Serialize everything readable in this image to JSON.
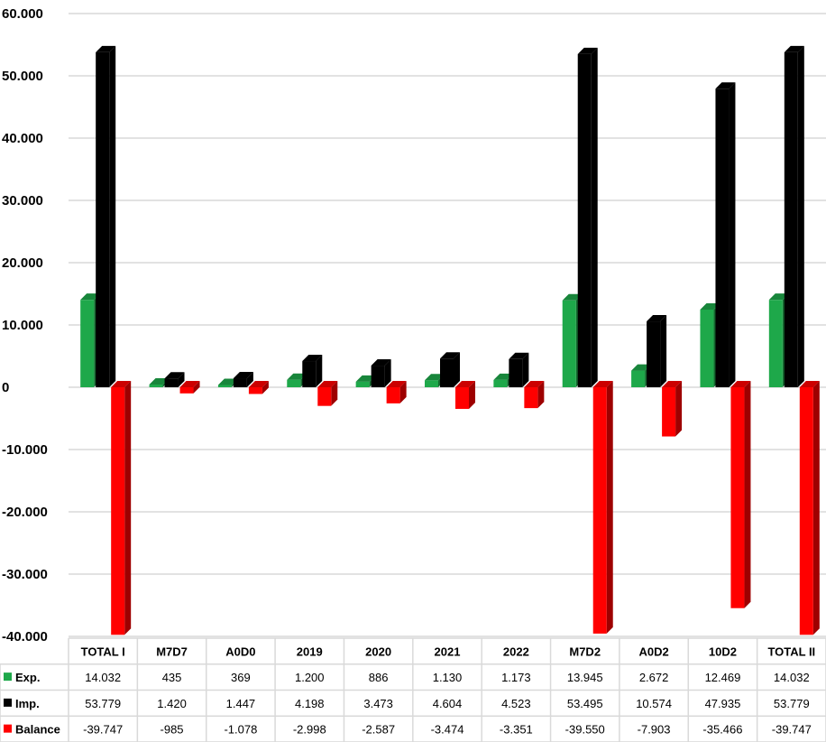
{
  "chart_data": {
    "type": "bar",
    "categories": [
      "TOTAL I",
      "M7D7",
      "A0D0",
      "2019",
      "2020",
      "2021",
      "2022",
      "M7D2",
      "A0D2",
      "10D2",
      "TOTAL II"
    ],
    "series": [
      {
        "name": "Exp.",
        "color": "#1ea84a",
        "values": [
          14032,
          435,
          369,
          1200,
          886,
          1130,
          1173,
          13945,
          2672,
          12469,
          14032
        ],
        "labels": [
          "14.032",
          "435",
          "369",
          "1.200",
          "886",
          "1.130",
          "1.173",
          "13.945",
          "2.672",
          "12.469",
          "14.032"
        ]
      },
      {
        "name": "Imp.",
        "color": "#000000",
        "values": [
          53779,
          1420,
          1447,
          4198,
          3473,
          4604,
          4523,
          53495,
          10574,
          47935,
          53779
        ],
        "labels": [
          "53.779",
          "1.420",
          "1.447",
          "4.198",
          "3.473",
          "4.604",
          "4.523",
          "53.495",
          "10.574",
          "47.935",
          "53.779"
        ]
      },
      {
        "name": "Balance",
        "color": "#ff0000",
        "values": [
          -39747,
          -985,
          -1078,
          -2998,
          -2587,
          -3474,
          -3351,
          -39550,
          -7903,
          -35466,
          -39747
        ],
        "labels": [
          "-39.747",
          "-985",
          "-1.078",
          "-2.998",
          "-2.587",
          "-3.474",
          "-3.351",
          "-39.550",
          "-7.903",
          "-35.466",
          "-39.747"
        ]
      }
    ],
    "ylim": [
      -40000,
      60000
    ],
    "yticks": [
      60000,
      50000,
      40000,
      30000,
      20000,
      10000,
      0,
      -10000,
      -20000,
      -30000,
      -40000
    ],
    "ytick_labels": [
      "60.000",
      "50.000",
      "40.000",
      "30.000",
      "20.000",
      "10.000",
      "0",
      "-10.000",
      "-20.000",
      "-30.000",
      "-40.000"
    ],
    "grid": true,
    "legend": "data-table"
  }
}
